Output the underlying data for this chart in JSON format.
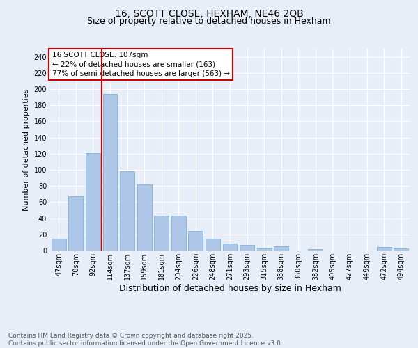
{
  "title": "16, SCOTT CLOSE, HEXHAM, NE46 2QB",
  "subtitle": "Size of property relative to detached houses in Hexham",
  "xlabel": "Distribution of detached houses by size in Hexham",
  "ylabel": "Number of detached properties",
  "footer": "Contains HM Land Registry data © Crown copyright and database right 2025.\nContains public sector information licensed under the Open Government Licence v3.0.",
  "annotation_title": "16 SCOTT CLOSE: 107sqm",
  "annotation_line1": "← 22% of detached houses are smaller (163)",
  "annotation_line2": "77% of semi-detached houses are larger (563) →",
  "categories": [
    "47sqm",
    "70sqm",
    "92sqm",
    "114sqm",
    "137sqm",
    "159sqm",
    "181sqm",
    "204sqm",
    "226sqm",
    "248sqm",
    "271sqm",
    "293sqm",
    "315sqm",
    "338sqm",
    "360sqm",
    "382sqm",
    "405sqm",
    "427sqm",
    "449sqm",
    "472sqm",
    "494sqm"
  ],
  "values": [
    15,
    67,
    121,
    194,
    98,
    82,
    43,
    43,
    24,
    15,
    9,
    7,
    3,
    5,
    0,
    2,
    0,
    0,
    0,
    4,
    3
  ],
  "bar_color": "#aec6e8",
  "bar_edge_color": "#7ab3d4",
  "vline_color": "#cc0000",
  "vline_index": 3,
  "ylim": [
    0,
    250
  ],
  "yticks": [
    0,
    20,
    40,
    60,
    80,
    100,
    120,
    140,
    160,
    180,
    200,
    220,
    240
  ],
  "background_color": "#e8eef8",
  "plot_bg_color": "#e8eef8",
  "grid_color": "#ffffff",
  "title_fontsize": 10,
  "subtitle_fontsize": 9,
  "xlabel_fontsize": 9,
  "ylabel_fontsize": 8,
  "tick_fontsize": 7,
  "footer_fontsize": 6.5,
  "annotation_fontsize": 7.5,
  "annotation_box_color": "#ffffff",
  "annotation_box_edge": "#cc0000"
}
